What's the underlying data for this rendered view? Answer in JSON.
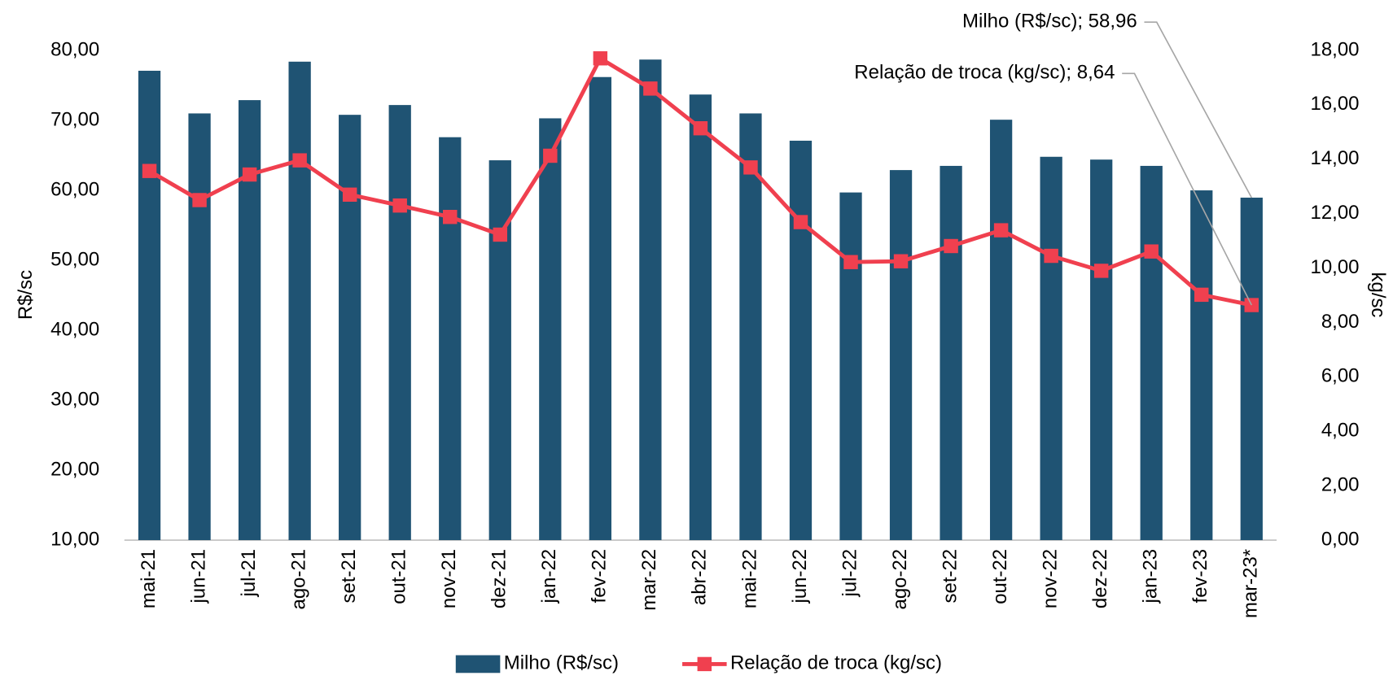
{
  "chart_data": {
    "type": "bar-line",
    "categories": [
      "mai-21",
      "jun-21",
      "jul-21",
      "ago-21",
      "set-21",
      "out-21",
      "nov-21",
      "dez-21",
      "jan-22",
      "fev-22",
      "mar-22",
      "abr-22",
      "mai-22",
      "jun-22",
      "jul-22",
      "ago-22",
      "set-22",
      "out-22",
      "nov-22",
      "dez-22",
      "jan-23",
      "fev-23",
      "mar-23*"
    ],
    "series": [
      {
        "name": "Milho (R$/sc)",
        "type": "bar",
        "color": "#1f5373",
        "values": [
          77.1,
          71.0,
          72.9,
          78.4,
          70.8,
          72.2,
          67.6,
          64.3,
          70.3,
          76.2,
          78.7,
          73.7,
          71.0,
          67.1,
          59.7,
          62.9,
          63.5,
          70.1,
          64.8,
          64.4,
          63.5,
          60.0,
          58.96
        ]
      },
      {
        "name": "Relação de troca (kg/sc)",
        "type": "line",
        "axis": "y2",
        "color": "#f0404f",
        "values": [
          13.57,
          12.5,
          13.44,
          13.96,
          12.7,
          12.3,
          11.88,
          11.23,
          14.13,
          17.71,
          16.6,
          15.14,
          13.7,
          11.69,
          10.22,
          10.25,
          10.81,
          11.39,
          10.45,
          9.9,
          10.61,
          9.02,
          8.64
        ]
      }
    ],
    "ylabel": "R$/sc",
    "y2label": "kg/sc",
    "ylim": [
      10,
      80
    ],
    "yticks": [
      {
        "value": 10,
        "label": "10,00"
      },
      {
        "value": 20,
        "label": "20,00"
      },
      {
        "value": 30,
        "label": "30,00"
      },
      {
        "value": 40,
        "label": "40,00"
      },
      {
        "value": 50,
        "label": "50,00"
      },
      {
        "value": 60,
        "label": "60,00"
      },
      {
        "value": 70,
        "label": "70,00"
      },
      {
        "value": 80,
        "label": "80,00"
      }
    ],
    "y2lim": [
      0,
      18
    ],
    "y2ticks": [
      {
        "value": 0,
        "label": "0,00"
      },
      {
        "value": 2,
        "label": "2,00"
      },
      {
        "value": 4,
        "label": "4,00"
      },
      {
        "value": 6,
        "label": "6,00"
      },
      {
        "value": 8,
        "label": "8,00"
      },
      {
        "value": 10,
        "label": "10,00"
      },
      {
        "value": 12,
        "label": "12,00"
      },
      {
        "value": 14,
        "label": "14,00"
      },
      {
        "value": 16,
        "label": "16,00"
      },
      {
        "value": 18,
        "label": "18,00"
      }
    ],
    "annotations": [
      "Milho (R$/sc); 58,96",
      "Relação de troca (kg/sc); 8,64"
    ],
    "legend": "bottom"
  }
}
